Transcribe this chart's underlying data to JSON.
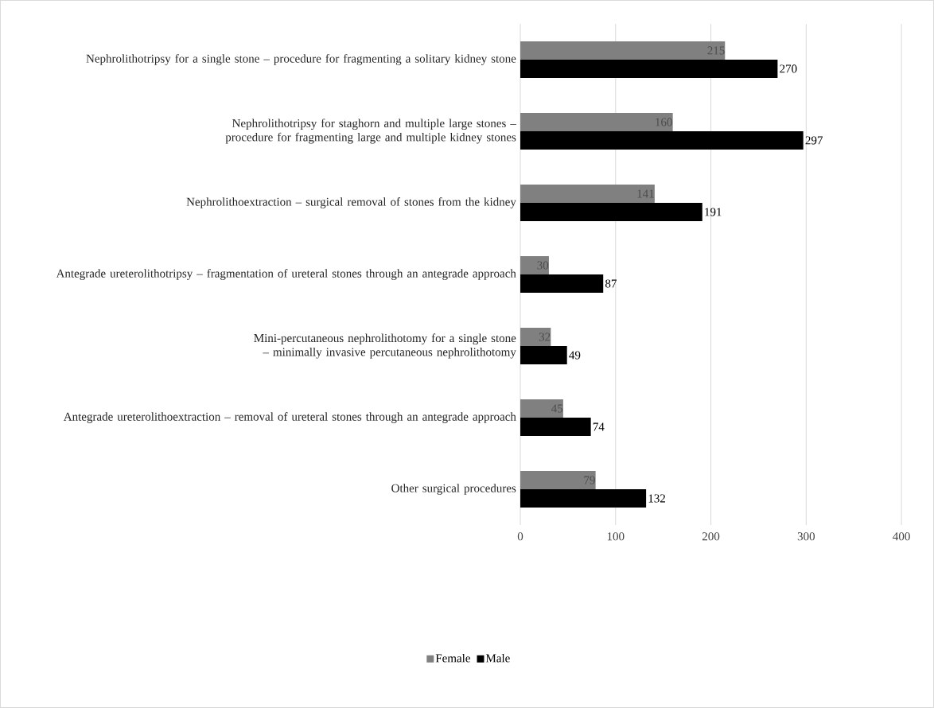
{
  "chart_data": {
    "type": "bar",
    "orientation": "horizontal",
    "categories": [
      "Nephrolithotripsy for a single stone – procedure for fragmenting a solitary kidney stone",
      "Nephrolithotripsy for staghorn and multiple large stones – procedure for fragmenting large and multiple kidney stones",
      "Nephrolithoextraction – surgical removal of stones from the kidney",
      "Antegrade ureterolithotripsy – fragmentation of ureteral stones through an antegrade approach",
      "Mini-percutaneous nephrolithotomy for a single stone – minimally invasive percutaneous nephrolithotomy",
      "Antegrade ureterolithoextraction – removal of ureteral stones through an antegrade approach",
      "Other surgical procedures"
    ],
    "series": [
      {
        "name": "Female",
        "color": "#808080",
        "values": [
          215,
          160,
          141,
          30,
          32,
          45,
          79
        ]
      },
      {
        "name": "Male",
        "color": "#000000",
        "values": [
          270,
          297,
          191,
          87,
          49,
          74,
          132
        ]
      }
    ],
    "xlim": [
      0,
      400
    ],
    "xticks": [
      0,
      100,
      200,
      300,
      400
    ],
    "grid": "x",
    "legend": "bottom",
    "data_labels": true
  }
}
